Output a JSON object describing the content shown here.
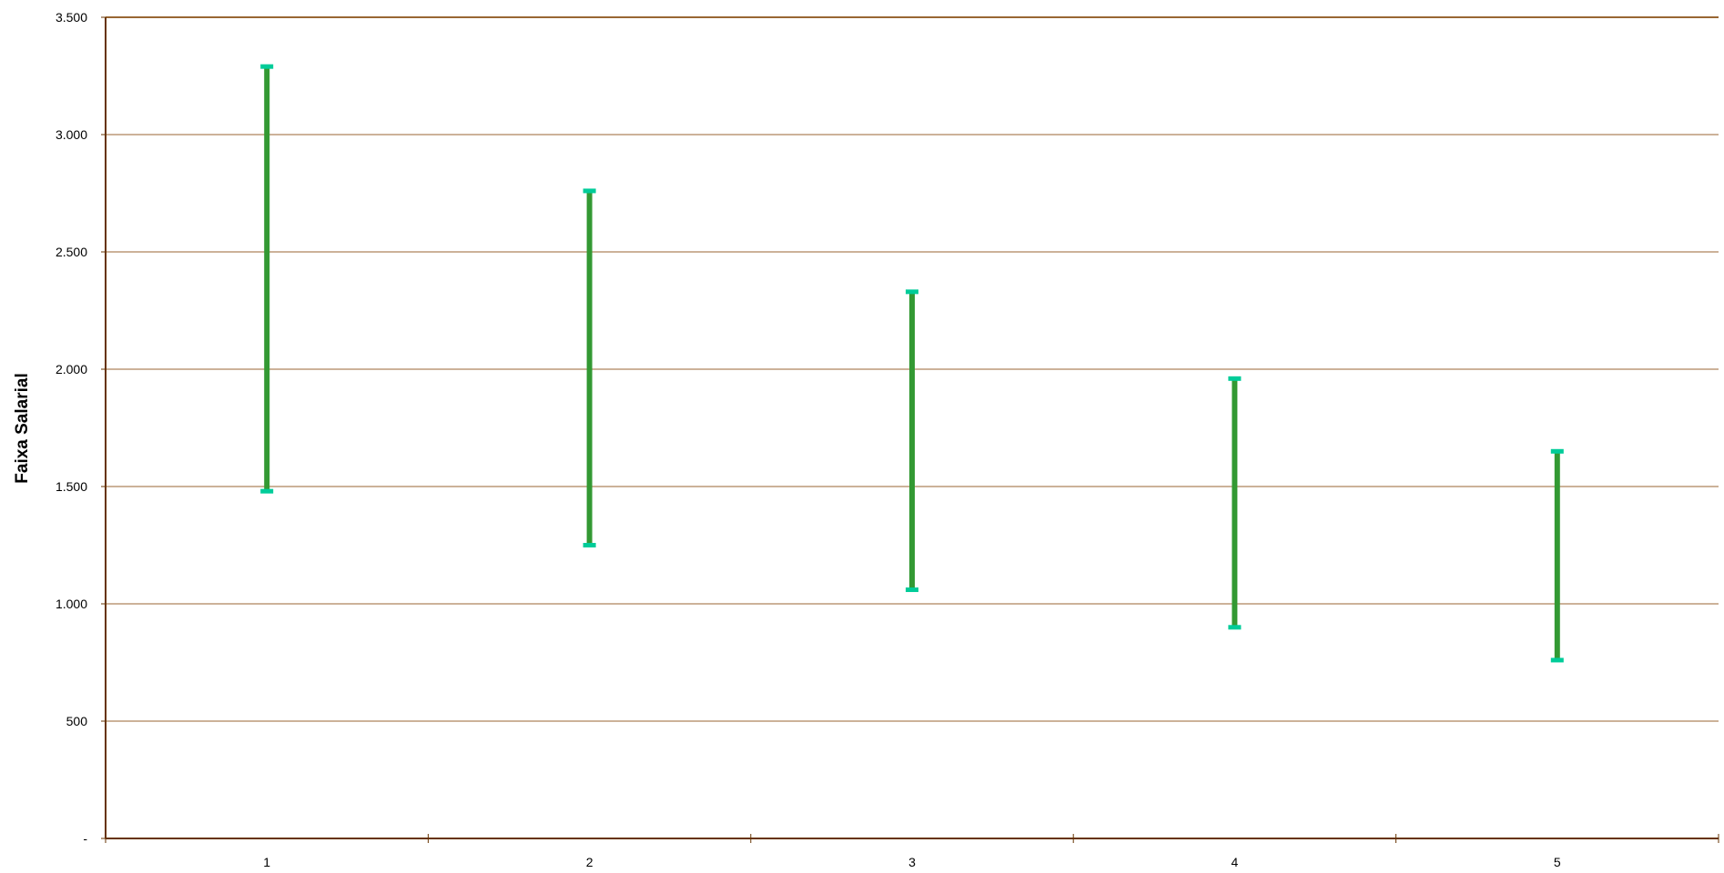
{
  "chart_data": {
    "type": "range",
    "title": "",
    "xlabel": "",
    "ylabel": "Faixa  Salarial",
    "categories": [
      "1",
      "2",
      "3",
      "4",
      "5"
    ],
    "ranges": [
      {
        "category": "1",
        "low": 1480,
        "high": 3290
      },
      {
        "category": "2",
        "low": 1250,
        "high": 2760
      },
      {
        "category": "3",
        "low": 1060,
        "high": 2330
      },
      {
        "category": "4",
        "low": 900,
        "high": 1960
      },
      {
        "category": "5",
        "low": 760,
        "high": 1650
      }
    ],
    "ylim": [
      0,
      3500
    ],
    "yticks": [
      0,
      500,
      1000,
      1500,
      2000,
      2500,
      3000,
      3500
    ],
    "ytick_labels": [
      "-",
      "500",
      "1.000",
      "1.500",
      "2.000",
      "2.500",
      "3.000",
      "3.500"
    ],
    "grid": true,
    "legend": "none",
    "colors": {
      "range_bar": "#339933",
      "range_cap": "#00cc99",
      "gridline": "#996633",
      "axis": "#663300"
    }
  }
}
